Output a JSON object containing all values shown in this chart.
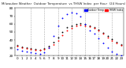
{
  "title": "Milwaukee Weather  Outdoor Temperature  vs THSW Index  per Hour  (24 Hours)",
  "title_fontsize": 2.8,
  "background_color": "#ffffff",
  "grid_color": "#aaaaaa",
  "xlim": [
    -0.5,
    23.5
  ],
  "ylim": [
    20,
    80
  ],
  "ytick_values": [
    20,
    30,
    40,
    50,
    60,
    70,
    80
  ],
  "ytick_labels": [
    "20",
    "30",
    "40",
    "50",
    "60",
    "70",
    "80"
  ],
  "hours": [
    0,
    1,
    2,
    3,
    4,
    5,
    6,
    7,
    8,
    9,
    10,
    11,
    12,
    13,
    14,
    15,
    16,
    17,
    18,
    19,
    20,
    21,
    22,
    23
  ],
  "xtick_labels": [
    "0",
    "1",
    "2",
    "3",
    "4",
    "5",
    "6",
    "7",
    "8",
    "9",
    "10",
    "11",
    "12",
    "13",
    "14",
    "15",
    "16",
    "17",
    "18",
    "19",
    "20",
    "21",
    "22",
    "23"
  ],
  "temp_red": [
    32,
    30,
    29,
    28,
    27,
    27,
    28,
    30,
    34,
    39,
    46,
    52,
    55,
    58,
    59,
    58,
    57,
    55,
    52,
    48,
    43,
    39,
    36,
    33
  ],
  "thsw_blue": [
    28,
    26,
    25,
    24,
    23,
    22,
    24,
    30,
    45,
    58,
    68,
    73,
    75,
    74,
    70,
    60,
    52,
    48,
    42,
    36,
    30,
    25,
    22,
    20
  ],
  "black_dots": [
    [
      0,
      33
    ],
    [
      1,
      31
    ],
    [
      2,
      30
    ],
    [
      3,
      29
    ],
    [
      4,
      28
    ],
    [
      5,
      27
    ],
    [
      6,
      29
    ],
    [
      7,
      32
    ],
    [
      8,
      37
    ],
    [
      9,
      43
    ],
    [
      10,
      50
    ],
    [
      11,
      56
    ],
    [
      12,
      58
    ],
    [
      13,
      60
    ],
    [
      14,
      61
    ],
    [
      15,
      60
    ],
    [
      16,
      58
    ],
    [
      17,
      56
    ],
    [
      18,
      53
    ],
    [
      19,
      49
    ],
    [
      20,
      45
    ],
    [
      21,
      41
    ],
    [
      22,
      37
    ],
    [
      23,
      34
    ]
  ],
  "red_color": "#ff0000",
  "blue_color": "#0000ff",
  "black_color": "#000000",
  "marker_size": 1.8,
  "tick_fontsize": 3.0,
  "vgrid_positions": [
    3,
    6,
    9,
    12,
    15,
    18,
    21
  ],
  "legend_blue_label": "Outdoor Temp",
  "legend_red_label": "THSW Index"
}
